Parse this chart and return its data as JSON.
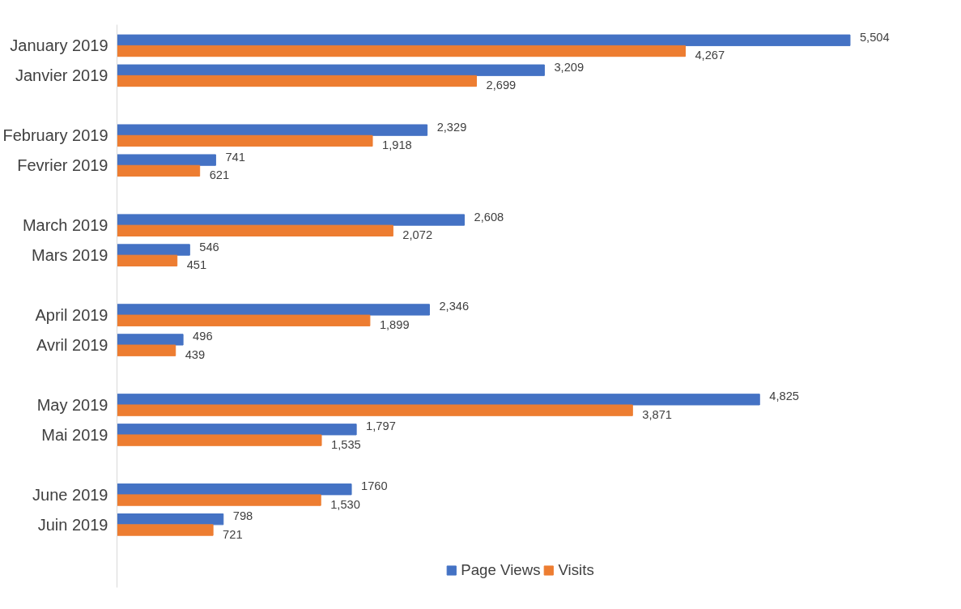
{
  "chart_data": {
    "type": "bar",
    "orientation": "horizontal",
    "legend": "bottom",
    "categories": [
      "January 2019",
      "Janvier 2019",
      null,
      "February 2019",
      "Fevrier 2019",
      null,
      "March 2019",
      "Mars 2019",
      null,
      "April 2019",
      "Avril 2019",
      null,
      "May 2019",
      "Mai 2019",
      null,
      "June 2019",
      "Juin 2019"
    ],
    "series": [
      {
        "name": "Page Views",
        "color": "#4472c4",
        "values": [
          5504,
          3209,
          null,
          2329,
          741,
          null,
          2608,
          546,
          null,
          2346,
          496,
          null,
          4825,
          1797,
          null,
          1760,
          798
        ],
        "value_labels": [
          "5,504",
          "3,209",
          null,
          "2,329",
          "741",
          null,
          "2,608",
          "546",
          null,
          "2,346",
          "496",
          null,
          "4,825",
          "1,797",
          null,
          "1760",
          "798"
        ]
      },
      {
        "name": "Visits",
        "color": "#ed7d31",
        "values": [
          4267,
          2699,
          null,
          1918,
          621,
          null,
          2072,
          451,
          null,
          1899,
          439,
          null,
          3871,
          1535,
          null,
          1530,
          721
        ],
        "value_labels": [
          "4,267",
          "2,699",
          null,
          "1,918",
          "621",
          null,
          "2,072",
          "451",
          null,
          "1,899",
          "439",
          null,
          "3,871",
          "1,535",
          null,
          "1,530",
          "721"
        ]
      }
    ]
  }
}
